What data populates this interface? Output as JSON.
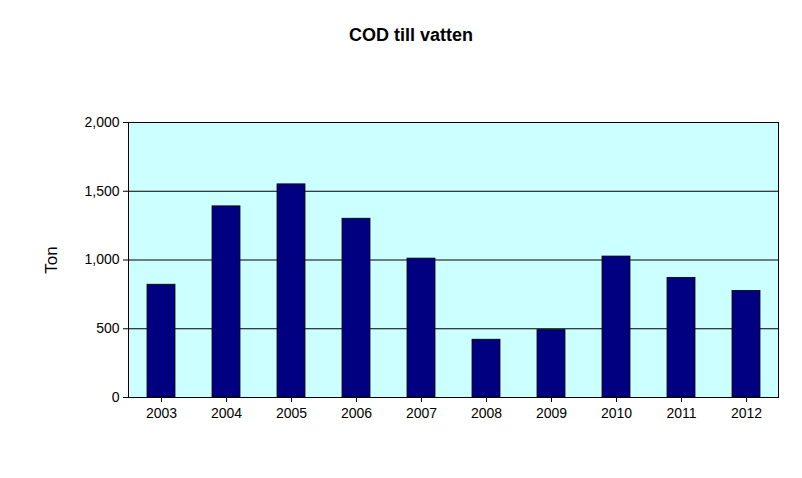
{
  "chart_data": {
    "type": "bar",
    "title": "COD till vatten",
    "y_label": "Ton",
    "categories": [
      "2003",
      "2004",
      "2005",
      "2006",
      "2007",
      "2008",
      "2009",
      "2010",
      "2011",
      "2012"
    ],
    "values": [
      820,
      1390,
      1550,
      1300,
      1010,
      420,
      490,
      1025,
      870,
      775
    ],
    "color": "#000080",
    "ylim": [
      0,
      2000
    ],
    "yticks": [
      0,
      500,
      1000,
      1500,
      2000
    ],
    "grid": true
  }
}
